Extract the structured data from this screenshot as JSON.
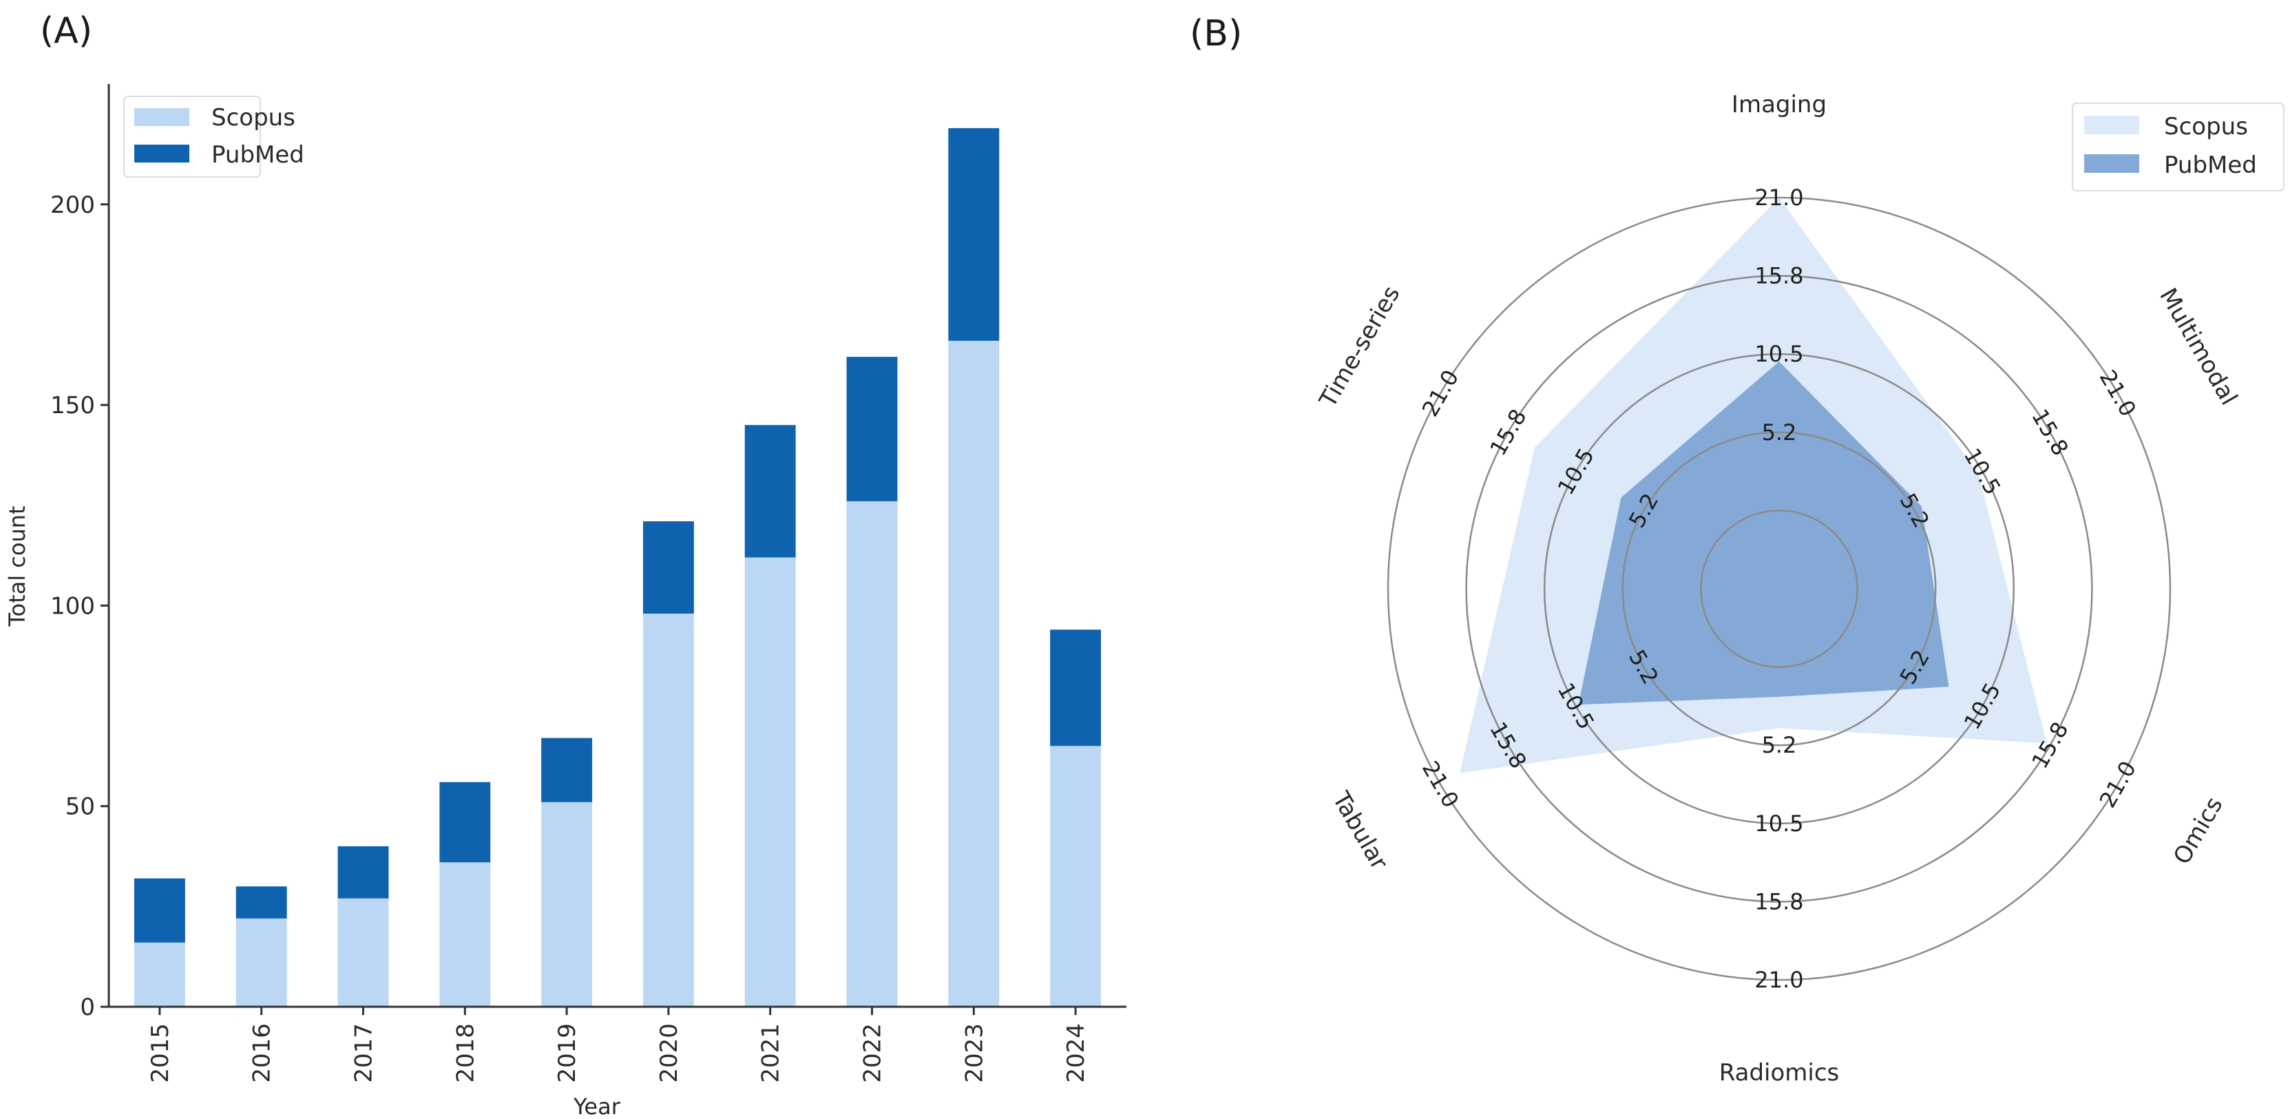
{
  "figure": {
    "panel_a_label": "(A)",
    "panel_b_label": "(B)"
  },
  "chart_data": [
    {
      "type": "bar",
      "stacked": true,
      "title": "",
      "xlabel": "Year",
      "ylabel": "Total count",
      "categories": [
        "2015",
        "2016",
        "2017",
        "2018",
        "2019",
        "2020",
        "2021",
        "2022",
        "2023",
        "2024"
      ],
      "series": [
        {
          "name": "Scopus",
          "color": "#bcd7f3",
          "values": [
            16,
            22,
            27,
            36,
            51,
            98,
            112,
            126,
            166,
            65
          ]
        },
        {
          "name": "PubMed",
          "color": "#0f63ae",
          "values": [
            16,
            8,
            13,
            20,
            16,
            23,
            33,
            36,
            53,
            29
          ]
        }
      ],
      "totals": [
        32,
        30,
        40,
        56,
        67,
        121,
        145,
        162,
        219,
        94
      ],
      "ylim": [
        0,
        230
      ],
      "yticks": [
        0,
        50,
        100,
        150,
        200
      ],
      "grid": false,
      "legend_position": "top-left"
    },
    {
      "type": "radar",
      "title": "",
      "axes": [
        "Imaging",
        "Multimodal",
        "Omics",
        "Radiomics",
        "Tabular",
        "Time-series"
      ],
      "series": [
        {
          "name": "Scopus",
          "color": "#dbe9f8",
          "values": [
            21.0,
            10.2,
            15.5,
            4.1,
            19.5,
            13.7
          ]
        },
        {
          "name": "PubMed",
          "color": "#84a9d6",
          "values": [
            10.0,
            5.8,
            7.9,
            2.0,
            10.3,
            7.0
          ]
        }
      ],
      "rlim": [
        -5.25,
        21.0
      ],
      "rings": [
        0,
        5.25,
        10.5,
        15.75,
        21.0
      ],
      "ring_labels": [
        "",
        "5.2",
        "10.5",
        "15.8",
        "21.0"
      ],
      "grid": true,
      "legend_position": "top-right"
    }
  ]
}
